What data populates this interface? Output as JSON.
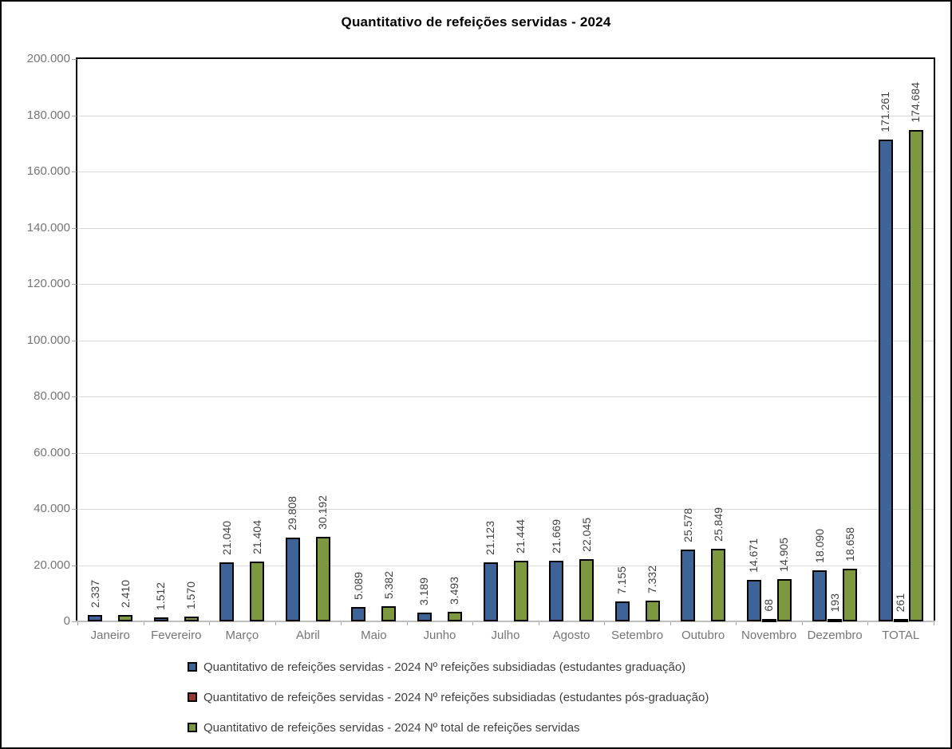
{
  "title": "Quantitativo de refeições servidas - 2024",
  "chart_data": {
    "type": "bar",
    "categories": [
      "Janeiro",
      "Fevereiro",
      "Março",
      "Abril",
      "Maio",
      "Junho",
      "Julho",
      "Agosto",
      "Setembro",
      "Outubro",
      "Novembro",
      "Dezembro",
      "TOTAL"
    ],
    "series": [
      {
        "name": "Quantitativo de refeições servidas - 2024 Nº refeições subsidiadas (estudantes graduação)",
        "color": "#3E6396",
        "values": [
          2337,
          1512,
          21040,
          29808,
          5089,
          3189,
          21123,
          21669,
          7155,
          25578,
          14671,
          18090,
          171261
        ]
      },
      {
        "name": "Quantitativo de refeições servidas - 2024 Nº refeições subsidiadas (estudantes pós-graduação)",
        "color": "#953735",
        "values": [
          0,
          0,
          0,
          0,
          0,
          0,
          0,
          0,
          0,
          0,
          68,
          193,
          261
        ]
      },
      {
        "name": "Quantitativo de refeições servidas - 2024 Nº total de refeições servidas",
        "color": "#7D983E",
        "values": [
          2410,
          1570,
          21404,
          30192,
          5382,
          3493,
          21444,
          22045,
          7332,
          25849,
          14905,
          18658,
          174684
        ]
      }
    ],
    "ylim": [
      0,
      200000
    ],
    "ytick_step": 20000,
    "grid": true,
    "legend_position": "bottom",
    "data_labels": "rotated-90-above-bars",
    "number_format": "thousands-dot-separator"
  },
  "colors": {
    "bar_border": "#000000",
    "gridline": "#D9D9D9",
    "axis_text": "#757575",
    "data_label_text": "#404040",
    "legend_text": "#404040",
    "plot_border": "#000000",
    "x_axis_line": "#BFBFBF",
    "frame_border": "#000000",
    "background": "#FFFFFF"
  }
}
